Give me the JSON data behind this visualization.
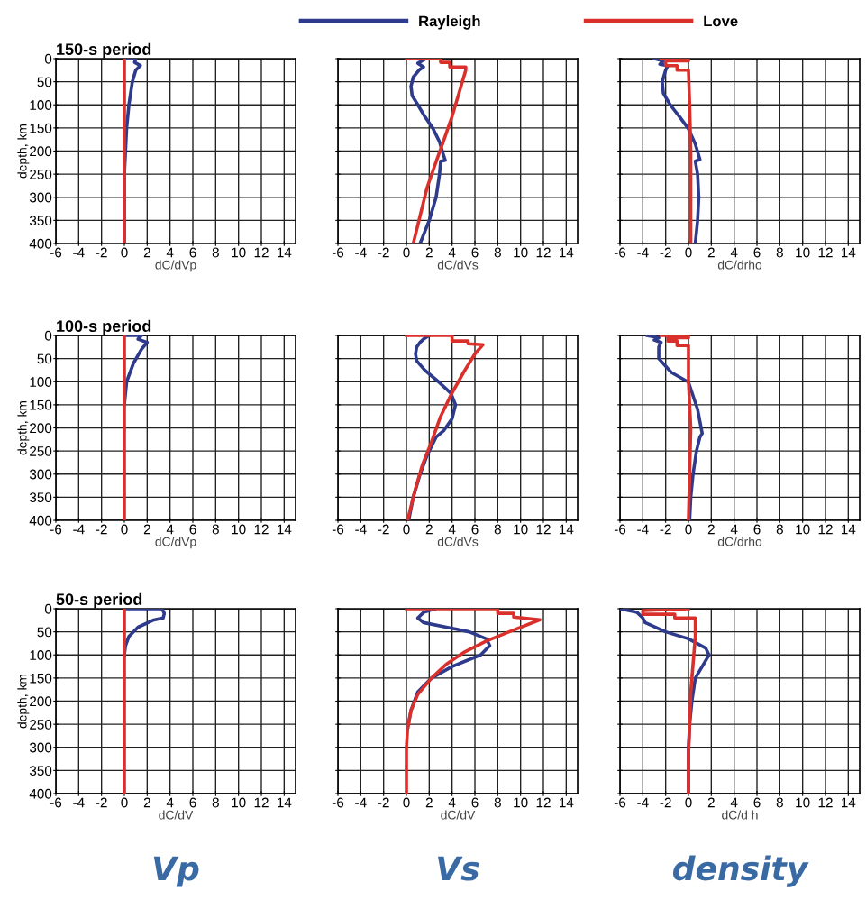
{
  "chart_data": [
    {
      "type": "line",
      "title": "150-s period",
      "xlabel": "dC/dVp",
      "ylabel": "depth, km",
      "legend": "top",
      "grid": true,
      "xlim": [
        -6,
        15
      ],
      "ylim": [
        400,
        0
      ],
      "xticks": [
        -6,
        -4,
        -2,
        0,
        2,
        4,
        6,
        8,
        10,
        12,
        14
      ],
      "yticks": [
        0,
        50,
        100,
        150,
        200,
        250,
        300,
        350,
        400
      ],
      "series": [
        {
          "name": "Rayleigh",
          "color": "#2e3a8c",
          "x": [
            0,
            1.0,
            0.9,
            1.4,
            1.0,
            0.7,
            0.4,
            0.2,
            0.1,
            0,
            0
          ],
          "values": [
            0,
            0,
            8,
            15,
            25,
            50,
            100,
            150,
            200,
            250,
            400
          ]
        },
        {
          "name": "Love",
          "color": "#d9302c",
          "x": [
            0,
            0
          ],
          "values": [
            0,
            400
          ]
        }
      ]
    },
    {
      "type": "line",
      "xlabel": "dC/dVs",
      "grid": true,
      "tick_labels": "x",
      "xlim": [
        -6,
        15
      ],
      "ylim": [
        400,
        0
      ],
      "xticks": [
        -6,
        -4,
        -2,
        0,
        2,
        4,
        6,
        8,
        10,
        12,
        14
      ],
      "yticks": [
        0,
        50,
        100,
        150,
        200,
        250,
        300,
        350,
        400
      ],
      "series": [
        {
          "color": "#2e3a8c",
          "x": [
            1.5,
            1.0,
            1.5,
            1.1,
            0.6,
            0.4,
            0.5,
            1.0,
            1.6,
            2.3,
            2.9,
            3.2,
            3.4,
            3.0,
            2.9,
            2.6,
            2.0,
            1.2
          ],
          "values": [
            3,
            10,
            18,
            25,
            40,
            60,
            80,
            100,
            125,
            150,
            180,
            205,
            220,
            222,
            250,
            300,
            350,
            400
          ]
        },
        {
          "color": "#d9302c",
          "x": [
            0,
            3.0,
            3.0,
            3.8,
            3.8,
            5.2,
            5.2,
            4.6,
            4.0,
            3.3,
            2.5,
            1.8,
            1.2,
            0.6
          ],
          "values": [
            0,
            0,
            8,
            8,
            18,
            18,
            25,
            75,
            125,
            175,
            230,
            280,
            340,
            400
          ]
        }
      ]
    },
    {
      "type": "line",
      "xlabel": "dC/drho",
      "grid": true,
      "tick_labels": "x",
      "xlim": [
        -6,
        15
      ],
      "ylim": [
        400,
        0
      ],
      "xticks": [
        -6,
        -4,
        -2,
        0,
        2,
        4,
        6,
        8,
        10,
        12,
        14
      ],
      "yticks": [
        0,
        50,
        100,
        150,
        200,
        250,
        300,
        350,
        400
      ],
      "series": [
        {
          "color": "#2e3a8c",
          "x": [
            -3.0,
            -2.2,
            -2.5,
            -1.8,
            -2.0,
            -2.3,
            -2.2,
            -1.6,
            -0.8,
            0.0,
            0.6,
            1.0,
            0.6,
            0.8,
            0.9,
            0.8,
            0.6
          ],
          "values": [
            0,
            5,
            12,
            15,
            25,
            50,
            75,
            100,
            125,
            152,
            185,
            218,
            222,
            250,
            300,
            350,
            400
          ]
        },
        {
          "color": "#d9302c",
          "x": [
            -2.4,
            0,
            0,
            -2.0,
            -2.0,
            -1.0,
            -1.0,
            0.0,
            0.1,
            0.2,
            0.2,
            0.2
          ],
          "values": [
            0,
            0,
            5,
            5,
            15,
            15,
            25,
            25,
            100,
            200,
            300,
            400
          ]
        }
      ]
    },
    {
      "type": "line",
      "title": "100-s period",
      "xlabel": "dC/dVp",
      "ylabel": "depth, km",
      "grid": true,
      "xlim": [
        -6,
        15
      ],
      "ylim": [
        400,
        0
      ],
      "xticks": [
        -6,
        -4,
        -2,
        0,
        2,
        4,
        6,
        8,
        10,
        12,
        14
      ],
      "yticks": [
        0,
        50,
        100,
        150,
        200,
        250,
        300,
        350,
        400
      ],
      "series": [
        {
          "color": "#2e3a8c",
          "x": [
            0,
            1.5,
            1.2,
            2.0,
            1.5,
            0.8,
            0.2,
            0
          ],
          "values": [
            0,
            0,
            8,
            15,
            30,
            60,
            100,
            150
          ]
        },
        {
          "color": "#d9302c",
          "x": [
            0,
            0
          ],
          "values": [
            0,
            400
          ]
        }
      ]
    },
    {
      "type": "line",
      "xlabel": "dC/dVs",
      "grid": true,
      "tick_labels": "x",
      "xlim": [
        -6,
        15
      ],
      "ylim": [
        400,
        0
      ],
      "xticks": [
        -6,
        -4,
        -2,
        0,
        2,
        4,
        6,
        8,
        10,
        12,
        14
      ],
      "yticks": [
        0,
        50,
        100,
        150,
        200,
        250,
        300,
        350,
        400
      ],
      "series": [
        {
          "color": "#2e3a8c",
          "x": [
            2.0,
            1.5,
            1.2,
            0.9,
            0.8,
            0.9,
            1.6,
            2.8,
            3.9,
            4.3,
            4.0,
            3.3,
            2.6,
            2.3,
            1.8,
            1.2,
            0.6,
            0.2
          ],
          "values": [
            0,
            8,
            15,
            25,
            40,
            55,
            75,
            100,
            125,
            150,
            180,
            205,
            220,
            235,
            260,
            300,
            350,
            400
          ]
        },
        {
          "color": "#d9302c",
          "x": [
            0,
            4.0,
            4.0,
            5.4,
            5.4,
            6.7,
            6.0,
            5.0,
            3.9,
            3.0,
            2.2,
            1.4,
            0.7,
            0.1
          ],
          "values": [
            0,
            0,
            12,
            12,
            18,
            20,
            40,
            80,
            129,
            175,
            230,
            280,
            340,
            400
          ]
        }
      ]
    },
    {
      "type": "line",
      "xlabel": "dC/drho",
      "grid": true,
      "tick_labels": "x",
      "xlim": [
        -6,
        15
      ],
      "ylim": [
        400,
        0
      ],
      "xticks": [
        -6,
        -4,
        -2,
        0,
        2,
        4,
        6,
        8,
        10,
        12,
        14
      ],
      "yticks": [
        0,
        50,
        100,
        150,
        200,
        250,
        300,
        350,
        400
      ],
      "series": [
        {
          "color": "#2e3a8c",
          "x": [
            -3.6,
            -2.6,
            -3.0,
            -2.4,
            -2.6,
            -2.6,
            -1.5,
            0.0,
            0.8,
            1.2,
            1.0,
            0.7,
            0.4,
            0.2,
            0.1
          ],
          "values": [
            0,
            5,
            10,
            15,
            25,
            50,
            80,
            101,
            160,
            212,
            220,
            250,
            300,
            350,
            400
          ]
        },
        {
          "color": "#d9302c",
          "x": [
            -2.4,
            0,
            0,
            -1.8,
            -1.8,
            -1.0,
            -1.0,
            0,
            0,
            0.2,
            0.1,
            0.0
          ],
          "values": [
            0,
            0,
            5,
            5,
            12,
            12,
            22,
            22,
            100,
            200,
            300,
            400
          ]
        }
      ]
    },
    {
      "type": "line",
      "title": "50-s period",
      "xlabel": "dC/dV",
      "ylabel": "depth, km",
      "grid": true,
      "xlim": [
        -6,
        15
      ],
      "ylim": [
        400,
        0
      ],
      "xticks": [
        -6,
        -4,
        -2,
        0,
        2,
        4,
        6,
        8,
        10,
        12,
        14
      ],
      "yticks": [
        0,
        50,
        100,
        150,
        200,
        250,
        300,
        350,
        400
      ],
      "annotations": [
        "Vp"
      ],
      "series": [
        {
          "color": "#2e3a8c",
          "x": [
            0,
            3.3,
            3.5,
            3.4,
            2.5,
            1.2,
            0.4,
            0.1,
            0
          ],
          "values": [
            0,
            0,
            10,
            20,
            25,
            40,
            60,
            80,
            100
          ]
        },
        {
          "color": "#d9302c",
          "x": [
            0,
            0
          ],
          "values": [
            0,
            400
          ]
        }
      ]
    },
    {
      "type": "line",
      "xlabel": "dC/dV",
      "grid": true,
      "tick_labels": "x",
      "xlim": [
        -6,
        15
      ],
      "ylim": [
        400,
        0
      ],
      "xticks": [
        -6,
        -4,
        -2,
        0,
        2,
        4,
        6,
        8,
        10,
        12,
        14
      ],
      "yticks": [
        0,
        50,
        100,
        150,
        200,
        250,
        300,
        350,
        400
      ],
      "annotations": [
        "Vs"
      ],
      "series": [
        {
          "color": "#2e3a8c",
          "x": [
            2.5,
            1.5,
            1.0,
            1.5,
            3.5,
            5.5,
            7.0,
            7.3,
            6.5,
            4.0,
            2.2,
            1.0,
            0.4,
            0.1
          ],
          "values": [
            0,
            8,
            20,
            30,
            40,
            50,
            65,
            80,
            100,
            125,
            150,
            180,
            220,
            260
          ]
        },
        {
          "color": "#d9302c",
          "x": [
            0,
            8.0,
            8.0,
            9.4,
            9.4,
            11.7,
            9.0,
            7.0,
            5.0,
            3.5,
            2.2,
            1.0,
            0.4,
            0.1,
            0.0,
            0.0
          ],
          "values": [
            0,
            0,
            10,
            10,
            18,
            24,
            50,
            70,
            95,
            120,
            150,
            185,
            220,
            260,
            300,
            400
          ]
        }
      ]
    },
    {
      "type": "line",
      "xlabel": "dC/d h",
      "grid": true,
      "tick_labels": "x",
      "xlim": [
        -6,
        15
      ],
      "ylim": [
        400,
        0
      ],
      "xticks": [
        -6,
        -4,
        -2,
        0,
        2,
        4,
        6,
        8,
        10,
        12,
        14
      ],
      "yticks": [
        0,
        50,
        100,
        150,
        200,
        250,
        300,
        350,
        400
      ],
      "annotations": [
        "density"
      ],
      "series": [
        {
          "color": "#2e3a8c",
          "x": [
            -6,
            -4.5,
            -4,
            -3.8,
            -2,
            0,
            1.5,
            1.8,
            1.2,
            0.6,
            0.3,
            0.1,
            0,
            0
          ],
          "values": [
            0,
            8,
            20,
            30,
            50,
            65,
            85,
            100,
            125,
            150,
            200,
            250,
            300,
            400
          ]
        },
        {
          "color": "#d9302c",
          "x": [
            0,
            -4.0,
            -4.0,
            -1.2,
            -1.2,
            0.6,
            0.6,
            0.4,
            0.2,
            0.1,
            0,
            0
          ],
          "values": [
            0,
            4,
            12,
            12,
            20,
            20,
            60,
            120,
            180,
            250,
            320,
            400
          ]
        }
      ]
    }
  ]
}
